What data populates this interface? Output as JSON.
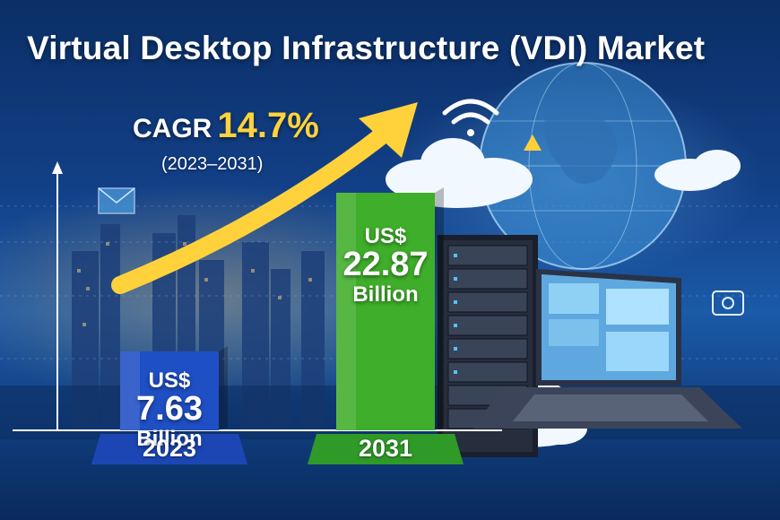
{
  "title": "Virtual Desktop Infrastructure (VDI) Market",
  "cagr": {
    "label": "CAGR",
    "value": "14.7%",
    "period": "(2023–2031)"
  },
  "chart_data": {
    "type": "bar",
    "title": "Virtual Desktop Infrastructure (VDI) Market",
    "categories": [
      "2023",
      "2031"
    ],
    "values": [
      7.63,
      22.87
    ],
    "value_labels": [
      {
        "currency": "US$",
        "number": "7.63",
        "unit": "Billion"
      },
      {
        "currency": "US$",
        "number": "22.87",
        "unit": "Billion"
      }
    ],
    "bar_colors": [
      "#1f4fc4",
      "#3fae2a"
    ],
    "base_colors": [
      "#1d46b5",
      "#2f9a28"
    ],
    "arrow_color": "#ffd23c",
    "grid": false,
    "legend": "none"
  },
  "icons": [
    "wifi-icon",
    "globe-icon",
    "cloud-icon",
    "server-rack-icon",
    "laptop-icon",
    "mail-icon",
    "camera-icon",
    "warning-icon",
    "growth-arrow-icon",
    "y-axis-arrow-icon"
  ]
}
